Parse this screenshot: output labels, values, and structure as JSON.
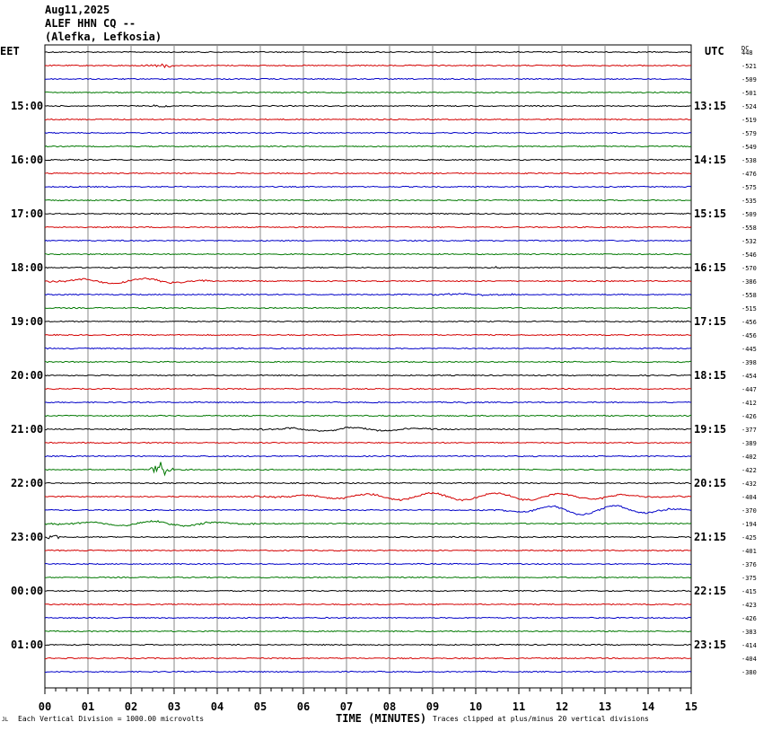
{
  "header": {
    "date": "Aug11,2025",
    "station": "ALEF HHN CQ --",
    "location": "(Alefka, Lefkosia)"
  },
  "labels": {
    "left_zone": "EET",
    "right_zone": "UTC",
    "dc_label": "DC",
    "x_axis_title": "TIME (MINUTES)",
    "scale_note": "Each Vertical Division = 1000.00 microvolts",
    "clip_note": "Traces clipped at plus/minus 20 vertical divisions",
    "corner_mark": "JL"
  },
  "chart_data": {
    "type": "line",
    "title": "ALEF HHN CQ --",
    "xlabel": "TIME (MINUTES)",
    "xlim": [
      0,
      15
    ],
    "x_ticks": [
      "00",
      "01",
      "02",
      "03",
      "04",
      "05",
      "06",
      "07",
      "08",
      "09",
      "10",
      "11",
      "12",
      "13",
      "14",
      "15"
    ],
    "left_time_labels": [
      "15:00",
      "16:00",
      "17:00",
      "18:00",
      "19:00",
      "20:00",
      "21:00",
      "22:00",
      "23:00",
      "00:00",
      "01:00"
    ],
    "right_time_labels": [
      "13:15",
      "14:15",
      "15:15",
      "16:15",
      "17:15",
      "18:15",
      "19:15",
      "20:15",
      "21:15",
      "22:15",
      "23:15"
    ],
    "trace_colors": [
      "#000000",
      "#d40000",
      "#0000c8",
      "#007800"
    ],
    "dc_offsets": [
      "448",
      "-521",
      "-509",
      "-501",
      "-524",
      "-519",
      "-579",
      "-549",
      "-538",
      "-476",
      "-575",
      "-535",
      "-509",
      "-558",
      "-532",
      "-546",
      "-570",
      "-386",
      "-558",
      "-515",
      "-456",
      "-456",
      "-445",
      "-398",
      "-454",
      "-447",
      "-412",
      "-426",
      "-377",
      "-389",
      "-402",
      "-422",
      "-432",
      "-404",
      "-370",
      "-194",
      "-425",
      "-401",
      "-376",
      "-375",
      "-415",
      "-423",
      "-426",
      "-383",
      "-414",
      "-404",
      "-380"
    ],
    "noise_level": [
      0.6,
      0.6,
      0.6,
      0.6,
      0.6,
      0.6,
      0.6,
      0.6,
      0.6,
      0.6,
      0.6,
      0.6,
      0.6,
      0.6,
      0.6,
      0.6,
      0.6,
      0.6,
      0.6,
      0.6,
      0.6,
      0.6,
      0.6,
      0.6,
      0.6,
      0.6,
      0.6,
      0.6,
      0.6,
      0.6,
      0.6,
      0.6,
      0.6,
      0.6,
      0.6,
      0.6,
      0.6,
      0.6,
      0.6,
      0.6,
      0.6,
      0.6,
      0.6,
      0.6,
      0.6,
      0.6,
      0.6
    ],
    "events": [
      {
        "trace": 1,
        "type": "burst",
        "x0": 2.3,
        "x1": 3.1,
        "amp": 2
      },
      {
        "trace": 4,
        "type": "burst",
        "x0": 2.4,
        "x1": 3.0,
        "amp": 1.5
      },
      {
        "trace": 16,
        "type": "burst",
        "x0": 10.4,
        "x1": 10.6,
        "amp": 2
      },
      {
        "trace": 17,
        "type": "wave",
        "x0": 0.0,
        "x1": 3.9,
        "amp": 6
      },
      {
        "trace": 18,
        "type": "wave",
        "x0": 9.0,
        "x1": 11.0,
        "amp": 1.5
      },
      {
        "trace": 26,
        "type": "burst",
        "x0": 9.7,
        "x1": 9.8,
        "amp": 3
      },
      {
        "trace": 28,
        "type": "wave",
        "x0": 4.9,
        "x1": 9.2,
        "amp": 4
      },
      {
        "trace": 31,
        "type": "burst",
        "x0": 2.4,
        "x1": 3.0,
        "amp": 9
      },
      {
        "trace": 33,
        "type": "wave",
        "x0": 4.8,
        "x1": 15.0,
        "amp": 8
      },
      {
        "trace": 34,
        "type": "wave",
        "x0": 10.3,
        "x1": 15.0,
        "amp": 10
      },
      {
        "trace": 35,
        "type": "wave",
        "x0": 0.0,
        "x1": 5.0,
        "amp": 5
      },
      {
        "trace": 36,
        "type": "burst",
        "x0": 0.0,
        "x1": 0.4,
        "amp": 2
      }
    ]
  }
}
